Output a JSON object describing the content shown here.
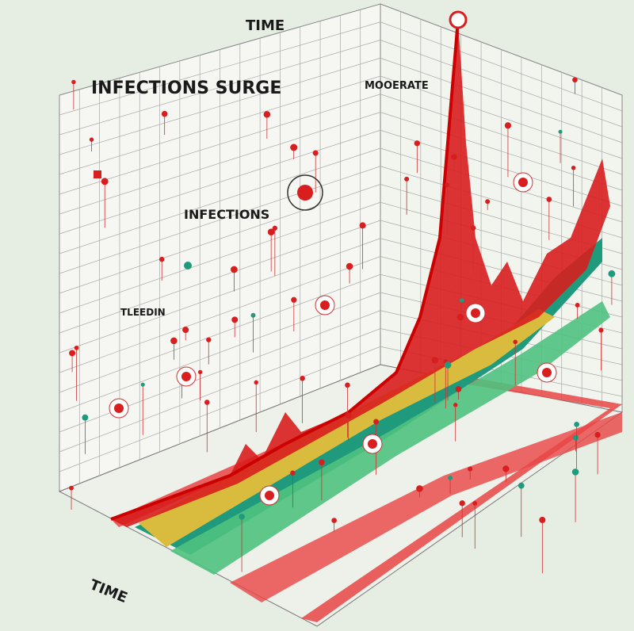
{
  "header": {
    "title": "TIME"
  },
  "headline": "INFECTIONS SURGE",
  "labels": {
    "moderate": "MOOERATE",
    "infections": "INFECTIONS",
    "legend": "TLEEDIN"
  },
  "axis": {
    "x_label": "TIME"
  }
}
